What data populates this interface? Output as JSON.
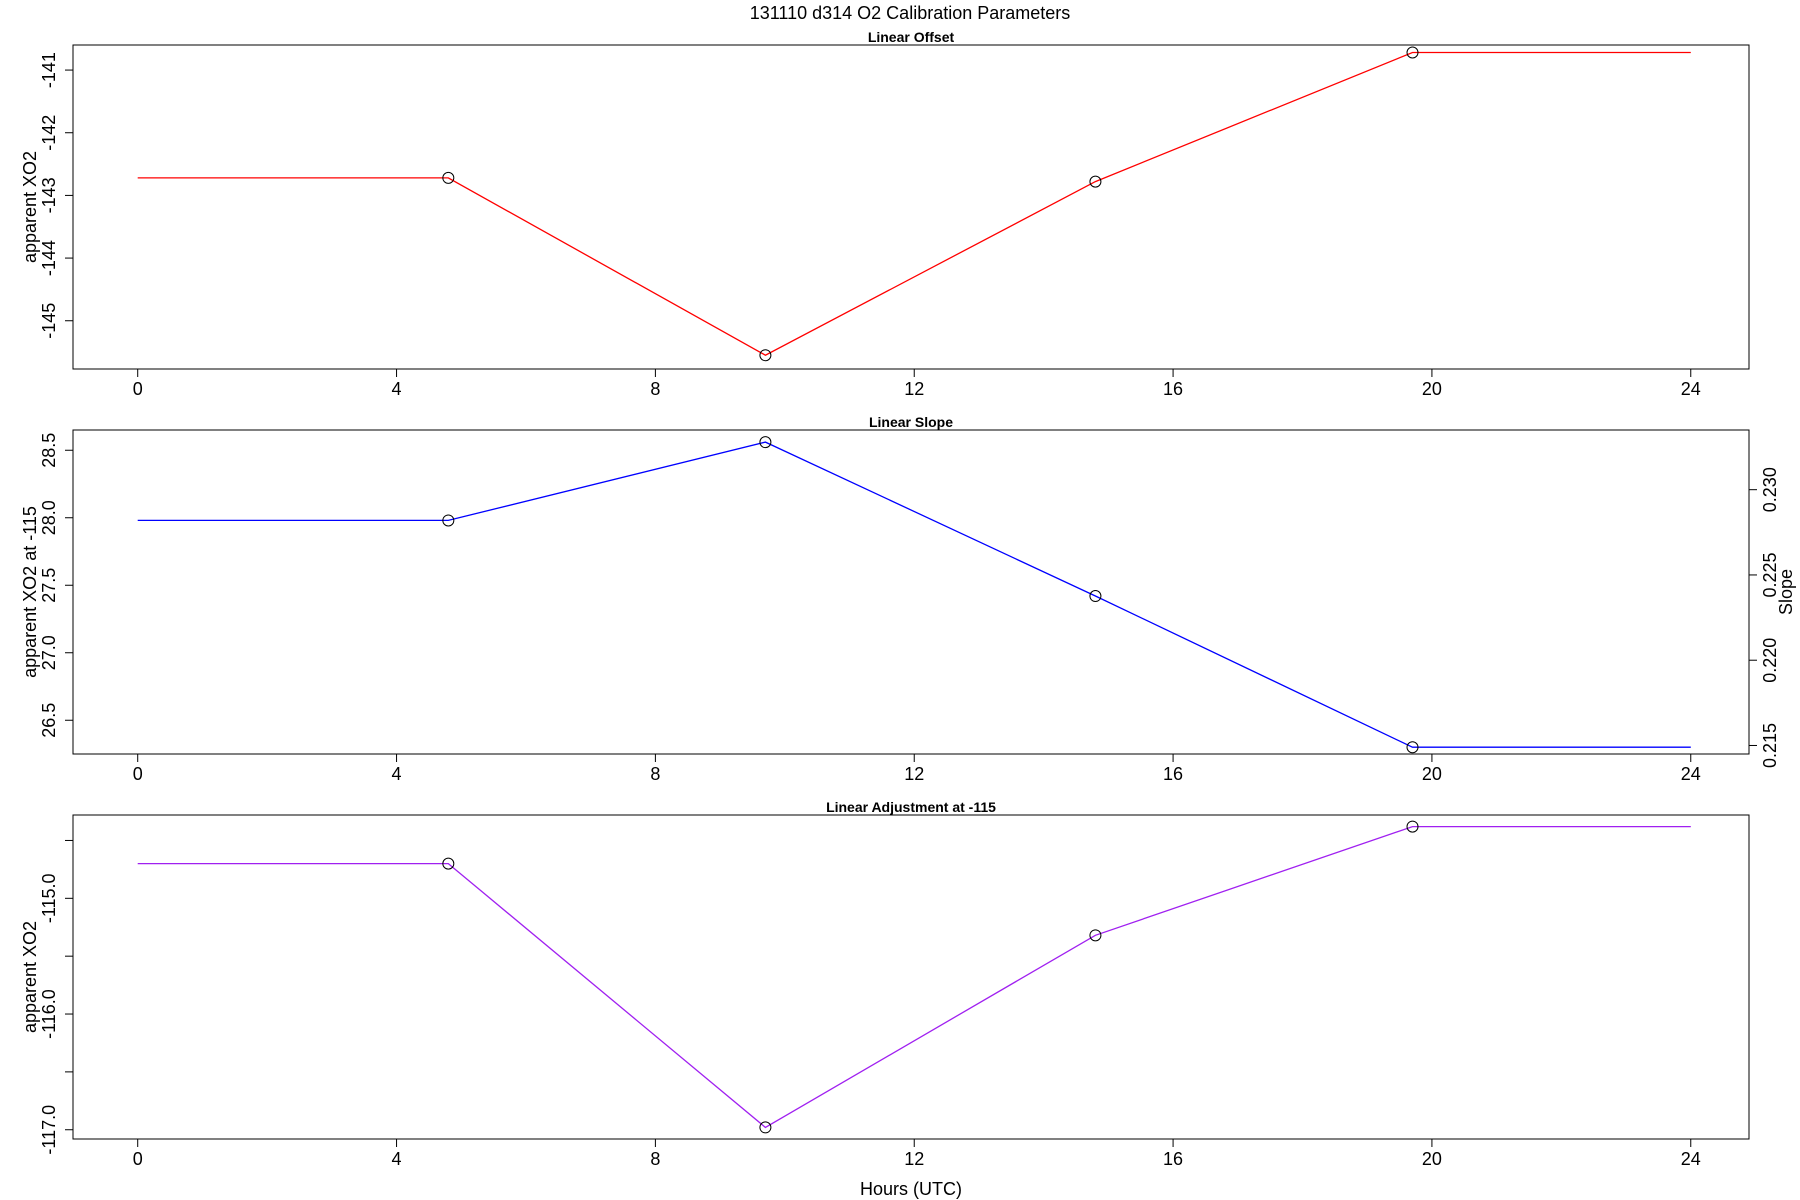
{
  "title": "131110   d314   O2 Calibration Parameters",
  "chart_data": [
    {
      "type": "line",
      "title": "Linear Offset",
      "xlabel": "",
      "ylabel": "apparent XO2",
      "xlim": [
        -1,
        24.9
      ],
      "ylim": [
        -145.77,
        -140.6
      ],
      "x_ticks": [
        "0",
        "4",
        "8",
        "12",
        "16",
        "20",
        "24"
      ],
      "y_ticks": [
        "-145",
        "-144",
        "-143",
        "-142",
        "-141"
      ],
      "color": "#ff0000",
      "x": [
        0,
        4.8,
        9.7,
        14.8,
        19.7,
        24
      ],
      "y": [
        -142.72,
        -142.72,
        -145.55,
        -142.78,
        -140.72,
        -140.72
      ],
      "markers": [
        [
          4.8,
          -142.72
        ],
        [
          9.7,
          -145.55
        ],
        [
          14.8,
          -142.78
        ],
        [
          19.7,
          -140.72
        ]
      ]
    },
    {
      "type": "line",
      "title": "Linear Slope",
      "xlabel": "",
      "ylabel": "apparent XO2 at -115",
      "ylabel_right": "Slope",
      "xlim": [
        -1,
        24.9
      ],
      "ylim": [
        26.25,
        28.65
      ],
      "x_ticks": [
        "0",
        "4",
        "8",
        "12",
        "16",
        "20",
        "24"
      ],
      "y_ticks": [
        "26.5",
        "27.0",
        "27.5",
        "28.0",
        "28.5"
      ],
      "y2_ticks": [
        "0.215",
        "0.220",
        "0.225",
        "0.230"
      ],
      "y2_tick_positions": [
        0.215,
        0.22,
        0.225,
        0.23
      ],
      "y2_axis_range": [
        0.2145,
        0.2335
      ],
      "color": "#0000ff",
      "x": [
        0,
        4.8,
        9.7,
        14.8,
        19.7,
        24
      ],
      "y": [
        27.98,
        27.98,
        28.56,
        27.42,
        26.3,
        26.3
      ],
      "markers": [
        [
          4.8,
          27.98
        ],
        [
          9.7,
          28.56
        ],
        [
          14.8,
          27.42
        ],
        [
          19.7,
          26.3
        ]
      ]
    },
    {
      "type": "line",
      "title": "Linear Adjustment at -115",
      "xlabel": "Hours (UTC)",
      "ylabel": "apparent XO2",
      "xlim": [
        -1,
        24.9
      ],
      "ylim": [
        -117.08,
        -114.28
      ],
      "x_ticks": [
        "0",
        "4",
        "8",
        "12",
        "16",
        "20",
        "24"
      ],
      "y_ticks": [
        "-115.0",
        "-116.0",
        "-117.0"
      ],
      "y_tick_positions": [
        -117.0,
        -116.5,
        -116.0,
        -115.5,
        -115.0,
        -114.5
      ],
      "color": "#a020f0",
      "x": [
        0,
        4.8,
        9.7,
        14.8,
        19.7,
        24
      ],
      "y": [
        -114.7,
        -114.7,
        -116.98,
        -115.32,
        -114.38,
        -114.38
      ],
      "markers": [
        [
          4.8,
          -114.7
        ],
        [
          9.7,
          -116.98
        ],
        [
          14.8,
          -115.32
        ],
        [
          19.7,
          -114.38
        ]
      ]
    }
  ]
}
